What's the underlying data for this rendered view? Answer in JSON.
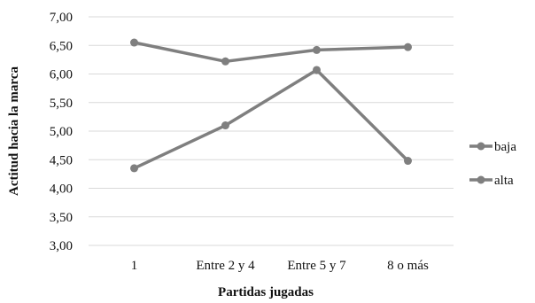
{
  "chart_data": {
    "type": "line",
    "categories": [
      "1",
      "Entre 2 y 4",
      "Entre 5 y 7",
      "8 o más"
    ],
    "series": [
      {
        "name": "baja",
        "values": [
          4.35,
          5.1,
          6.07,
          4.48
        ],
        "color": "#7f7f7f"
      },
      {
        "name": "alta",
        "values": [
          6.55,
          6.22,
          6.42,
          6.47
        ],
        "color": "#7f7f7f"
      }
    ],
    "title": "",
    "xlabel": "Partidas jugadas",
    "ylabel": "Actitud hacia la marca",
    "ylim": [
      3.0,
      7.0
    ],
    "yticks": [
      "3,00",
      "3,50",
      "4,00",
      "4,50",
      "5,00",
      "5,50",
      "6,00",
      "6,50",
      "7,00"
    ],
    "grid": true,
    "legend": "right"
  }
}
